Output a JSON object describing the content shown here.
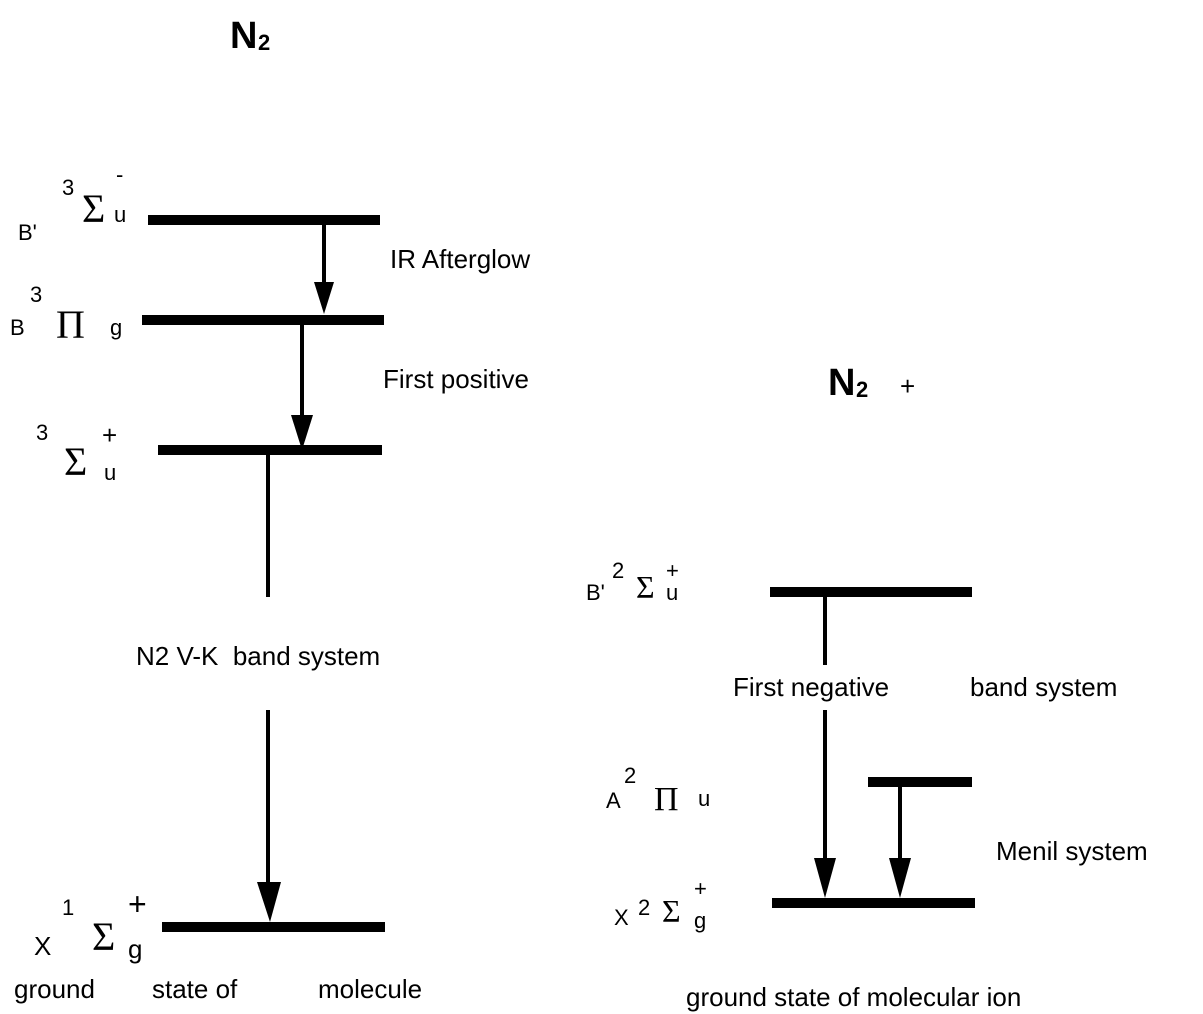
{
  "left": {
    "title": "N",
    "title_sub": "2",
    "levels": [
      {
        "prefix": "B'",
        "pre_sup": "3",
        "symbol": "Σ",
        "sub": "u",
        "sup": "-"
      },
      {
        "prefix": "B",
        "pre_sup": "3",
        "symbol": "Π",
        "sub": "g"
      },
      {
        "pre_sup": "3",
        "symbol": "Σ",
        "sub": "u",
        "sup": "+"
      },
      {
        "prefix": "X",
        "pre_sup": "1",
        "symbol": "Σ",
        "sub": "g",
        "sup": "+"
      }
    ],
    "transitions": [
      "IR Afterglow",
      "First positive",
      "N2 V-K  band system"
    ],
    "caption": [
      "ground",
      "state of",
      "molecule"
    ]
  },
  "right": {
    "title": "N",
    "title_sub": "2",
    "title_suffix": "+",
    "levels": [
      {
        "prefix": "B'",
        "pre_sup": "2",
        "symbol": "Σ",
        "sub": "u",
        "sup": "+"
      },
      {
        "prefix": "A",
        "pre_sup": "2",
        "symbol": "Π",
        "sub": "u"
      },
      {
        "prefix": "X",
        "pre_sup": "2",
        "symbol": "Σ",
        "sub": "g",
        "sup": "+"
      }
    ],
    "transitions": [
      "First negative",
      "band system",
      "Menil system"
    ],
    "caption": "ground state of molecular ion"
  }
}
